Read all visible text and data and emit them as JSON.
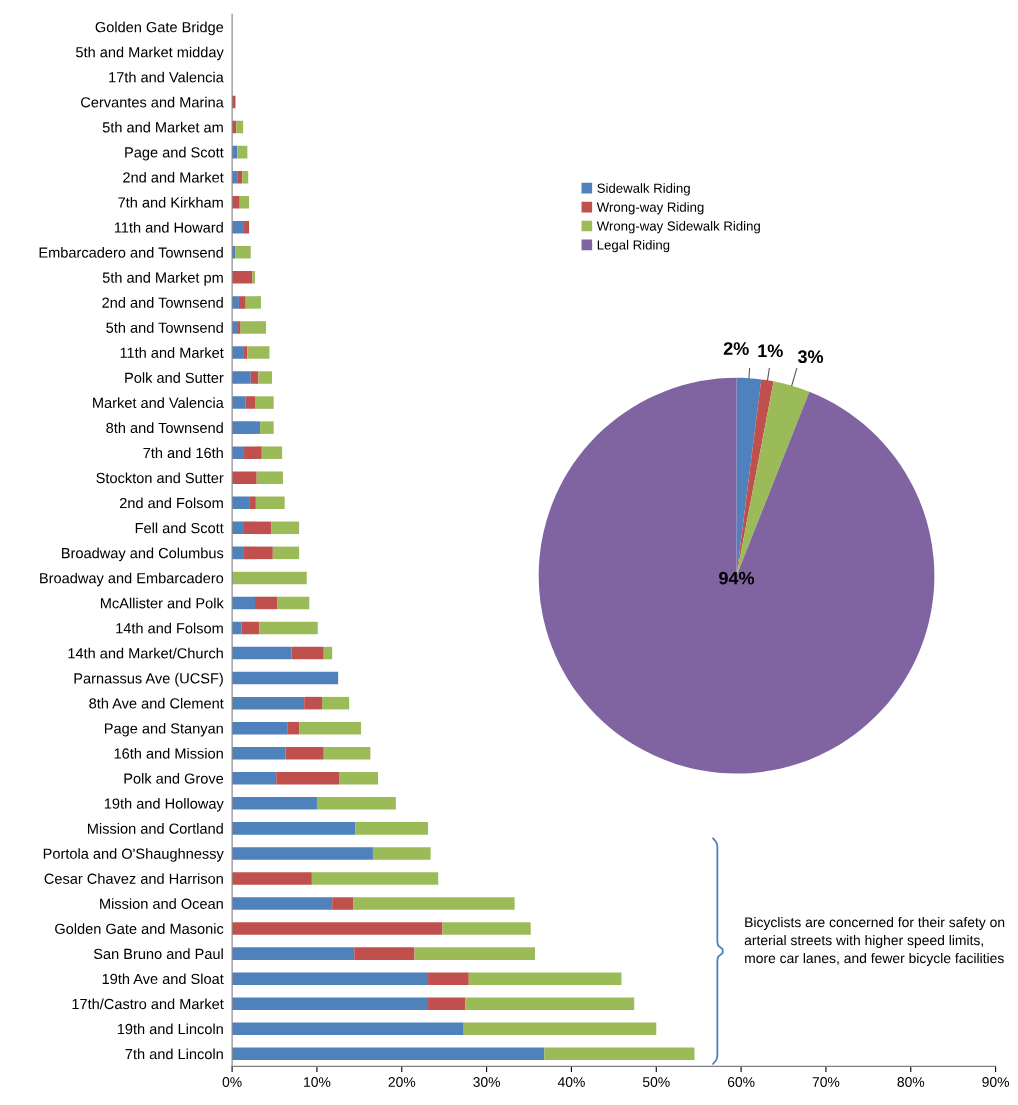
{
  "chart_data": [
    {
      "type": "bar",
      "orientation": "horizontal",
      "stacked": true,
      "categories": [
        "Golden Gate Bridge",
        "5th and Market midday",
        "17th and Valencia",
        "Cervantes and Marina",
        "5th and Market am",
        "Page and Scott",
        "2nd and Market",
        "7th and Kirkham",
        "11th and Howard",
        "Embarcadero and Townsend",
        "5th and Market pm",
        "2nd and Townsend",
        "5th and Townsend",
        "11th and Market",
        "Polk and Sutter",
        "Market and Valencia",
        "8th and Townsend",
        "7th and 16th",
        "Stockton and Sutter",
        "2nd and Folsom",
        "Fell and Scott",
        "Broadway and Columbus",
        "Broadway and Embarcadero",
        "McAllister and Polk",
        "14th and Folsom",
        "14th and Market/Church",
        "Parnassus Ave (UCSF)",
        "8th Ave and Clement",
        "Page and Stanyan",
        "16th and Mission",
        "Polk and Grove",
        "19th and Holloway",
        "Mission and Cortland",
        "Portola and O'Shaughnessy",
        "Cesar Chavez and Harrison",
        "Mission and Ocean",
        "Golden Gate and Masonic",
        "San Bruno and Paul",
        "19th Ave and Sloat",
        "17th/Castro and Market",
        "19th and Lincoln",
        "7th and Lincoln"
      ],
      "series": [
        {
          "color": "#4f81bd",
          "values": [
            0,
            0,
            0,
            0,
            0,
            0.6,
            0.6,
            0,
            1.3,
            0.4,
            0,
            0.8,
            0.7,
            1.3,
            2.2,
            1.6,
            3.3,
            1.3,
            0,
            2.1,
            1.4,
            1.3,
            0,
            2.7,
            1.1,
            7.0,
            12.5,
            8.5,
            6.5,
            6.3,
            5.2,
            10.0,
            14.5,
            16.6,
            0,
            11.8,
            0,
            14.4,
            23.1,
            23.1,
            27.3,
            36.8
          ]
        },
        {
          "color": "#c0504d",
          "values": [
            0,
            0,
            0,
            0.4,
            0.5,
            0,
            0.6,
            0.9,
            0.7,
            0,
            2.4,
            0.8,
            0.3,
            0.5,
            0.9,
            1.1,
            0,
            2.2,
            2.9,
            0.7,
            3.2,
            3.5,
            0,
            2.6,
            2.1,
            3.8,
            0,
            2.1,
            1.4,
            4.5,
            7.4,
            0,
            0,
            0,
            9.4,
            2.5,
            24.8,
            7.1,
            4.8,
            4.4,
            0,
            0
          ]
        },
        {
          "color": "#9bbb59",
          "values": [
            0,
            0,
            0,
            0,
            0.8,
            1.2,
            0.7,
            1.1,
            0,
            1.8,
            0.3,
            1.8,
            3.0,
            2.6,
            1.6,
            2.2,
            1.6,
            2.4,
            3.1,
            3.4,
            3.3,
            3.1,
            8.8,
            3.8,
            6.9,
            1.0,
            0,
            3.2,
            7.3,
            5.5,
            4.6,
            9.3,
            8.6,
            6.8,
            14.9,
            19.0,
            10.4,
            14.2,
            18.0,
            19.9,
            22.7,
            17.7
          ]
        }
      ],
      "xlim": [
        0,
        90
      ],
      "xticks": [
        {
          "value": 0,
          "label": "0%"
        },
        {
          "value": 10,
          "label": "10%"
        },
        {
          "value": 20,
          "label": "20%"
        },
        {
          "value": 30,
          "label": "30%"
        },
        {
          "value": 40,
          "label": "40%"
        },
        {
          "value": 50,
          "label": "50%"
        },
        {
          "value": 60,
          "label": "60%"
        },
        {
          "value": 70,
          "label": "70%"
        },
        {
          "value": 80,
          "label": "80%"
        },
        {
          "value": 90,
          "label": "90%"
        }
      ],
      "grid": false,
      "annotations": [
        "Bicyclists are concerned for their safety on arterial streets with higher speed limits, more car lanes, and fewer bicycle facilities"
      ]
    },
    {
      "type": "pie",
      "categories": [
        "Sidewalk Riding",
        "Wrong-way Riding",
        "Wrong-way Sidewalk Riding",
        "Legal Riding"
      ],
      "values": [
        2,
        1,
        3,
        94
      ],
      "colors": [
        "#4f81bd",
        "#c0504d",
        "#9bbb59",
        "#8064a2"
      ],
      "value_labels": [
        "2%",
        "1%",
        "3%",
        "94%"
      ],
      "legend": "top"
    }
  ]
}
